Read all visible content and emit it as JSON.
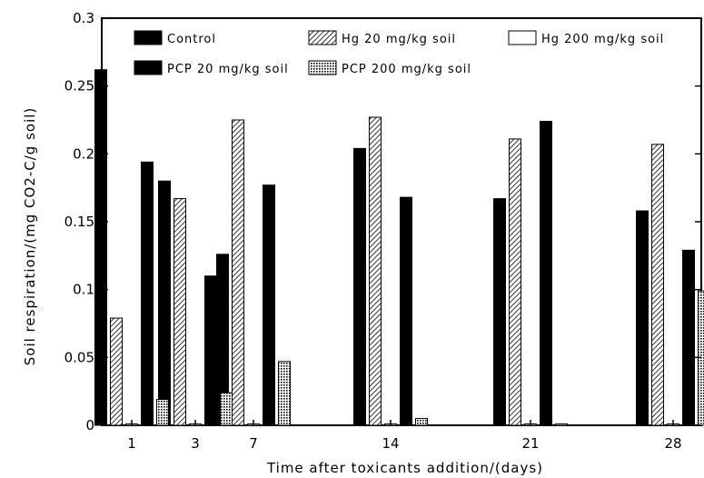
{
  "chart_data": {
    "type": "bar",
    "xlabel": "Time after toxicants addition/(days)",
    "ylabel": "Soil respiration/(mg CO2-C/g soil)",
    "ylim": [
      0,
      0.3
    ],
    "yticks": [
      "0",
      "0.05",
      "0.1",
      "0.15",
      "0.2",
      "0.25",
      "0.3"
    ],
    "grid": false,
    "legend_position": "top",
    "categories": [
      "1",
      "3",
      "7",
      "14",
      "21",
      "28"
    ],
    "series": [
      {
        "name": "Control",
        "x": [
          "1",
          "3",
          "7",
          "14",
          "21",
          "28"
        ],
        "values": [
          0.262,
          0.18,
          0.126,
          0.204,
          0.167,
          0.158
        ]
      },
      {
        "name": "Hg 20 mg/kg soil",
        "x": [
          "1",
          "3",
          "7",
          "14",
          "21",
          "28"
        ],
        "values": [
          0.079,
          0.167,
          0.225,
          0.227,
          0.211,
          0.207
        ]
      },
      {
        "name": "Hg 200 mg/kg soil",
        "x": [
          "1",
          "3",
          "7",
          "14",
          "21",
          "28"
        ],
        "values": [
          0.001,
          0.001,
          0.001,
          0.001,
          0.001,
          0.001
        ]
      },
      {
        "name": "PCP 20 mg/kg soil",
        "x": [
          "1",
          "3",
          "7",
          "14",
          "21",
          "28"
        ],
        "values": [
          0.194,
          0.11,
          0.177,
          0.168,
          0.224,
          0.129
        ]
      },
      {
        "name": "PCP 200 mg/kg soil",
        "x": [
          "1",
          "3",
          "7",
          "14",
          "21",
          "28"
        ],
        "values": [
          0.019,
          0.024,
          0.047,
          0.005,
          0.001,
          0.099
        ]
      }
    ]
  }
}
